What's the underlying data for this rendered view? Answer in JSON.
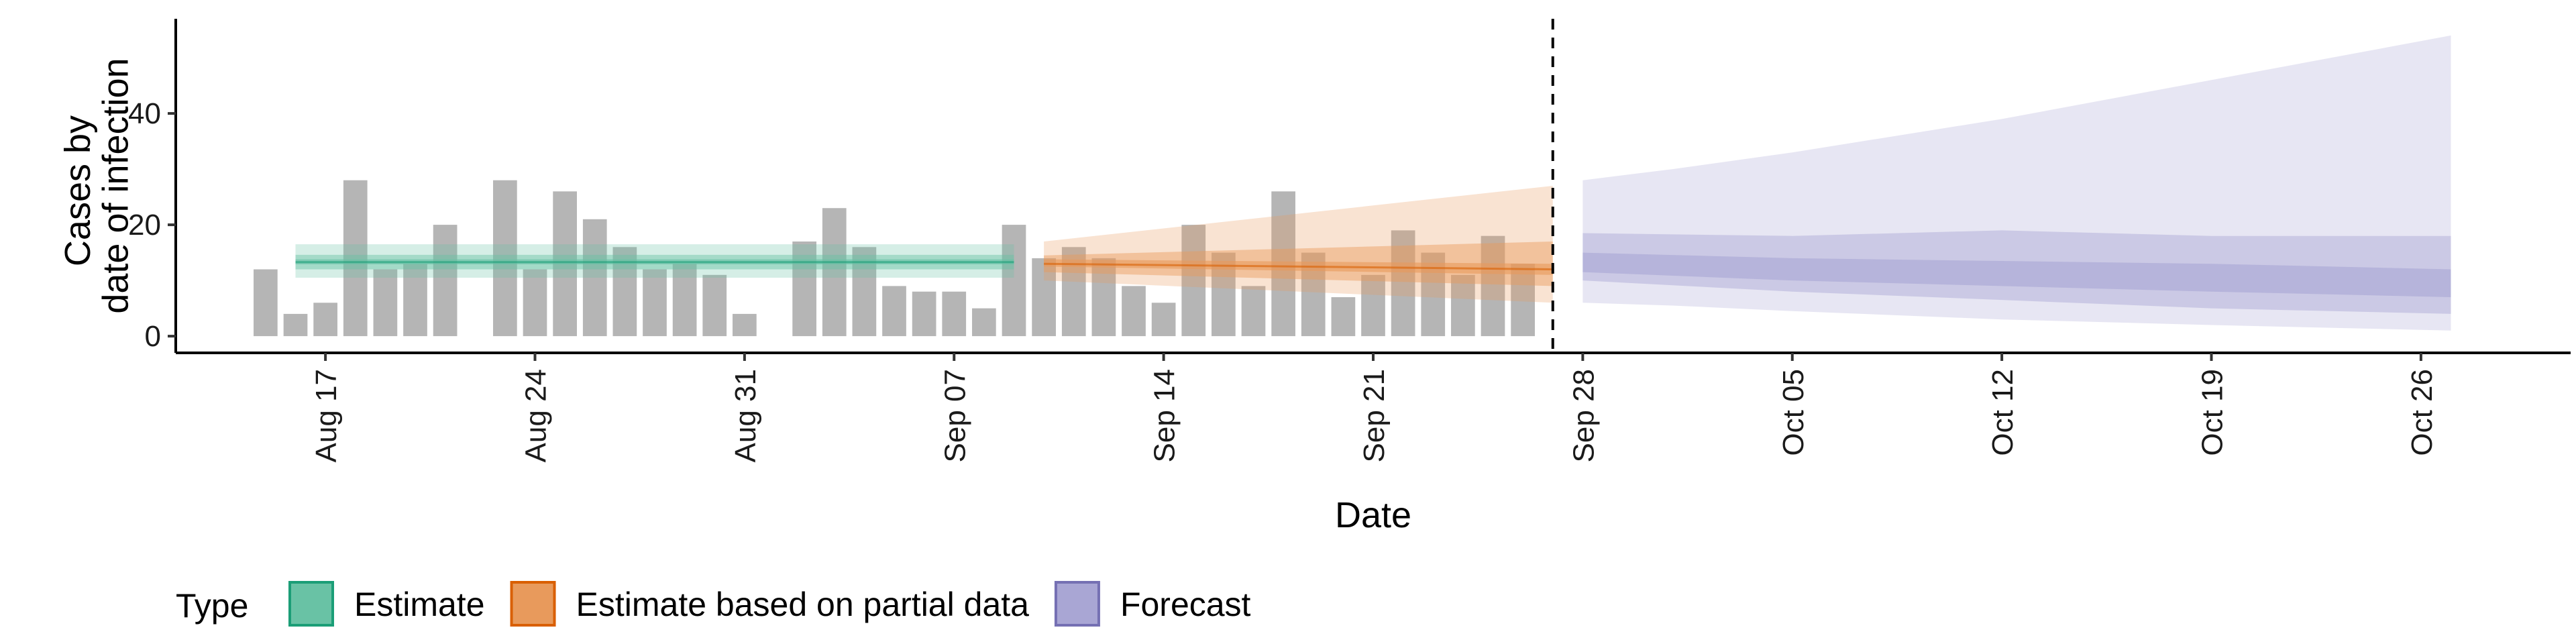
{
  "chart_data": {
    "type": "bar",
    "title": "",
    "xlabel": "Date",
    "ylabel": [
      "Cases by",
      "date of infection"
    ],
    "ylim": [
      -3,
      57
    ],
    "y_ticks": [
      0,
      20,
      40
    ],
    "x_ticks": [
      "Aug 17",
      "Aug 24",
      "Aug 31",
      "Sep 07",
      "Sep 14",
      "Sep 21",
      "Sep 28",
      "Oct 05",
      "Oct 12",
      "Oct 19",
      "Oct 26"
    ],
    "x_tick_dates": [
      "2020-08-17",
      "2020-08-24",
      "2020-08-31",
      "2020-09-07",
      "2020-09-14",
      "2020-09-21",
      "2020-09-28",
      "2020-10-05",
      "2020-10-12",
      "2020-10-19",
      "2020-10-26"
    ],
    "x_range": [
      "2020-08-12",
      "2020-10-31"
    ],
    "cutoff_date": "2020-09-27",
    "bar_color": "#b5b5b5",
    "bars": {
      "start_date": "2020-08-15",
      "values": [
        12,
        4,
        6,
        28,
        12,
        13,
        20,
        0,
        28,
        12,
        26,
        21,
        16,
        12,
        13,
        11,
        4,
        0,
        17,
        23,
        16,
        9,
        8,
        8,
        5,
        20,
        14,
        16,
        14,
        9,
        6,
        20,
        15,
        9,
        26,
        15,
        7,
        11,
        19,
        15,
        11,
        18,
        13
      ]
    },
    "series": [
      {
        "name": "Estimate",
        "color": "#1b9e77",
        "fill": "#69c2a5",
        "x_start": "2020-08-16",
        "x_end": "2020-09-09",
        "median": 13.3,
        "bands": [
          {
            "low": 10.5,
            "high": 16.5
          },
          {
            "low": 12.0,
            "high": 14.6
          },
          {
            "low": 12.9,
            "high": 13.8
          }
        ]
      },
      {
        "name": "Estimate based on partial data",
        "color": "#d95f02",
        "fill": "#e89a5c",
        "x_start": "2020-09-10",
        "x_end": "2020-09-27",
        "median_start": 13.0,
        "median_end": 12.0,
        "bands": [
          {
            "low_start": 10.0,
            "low_end": 6.0,
            "high_start": 17.0,
            "high_end": 27.0
          },
          {
            "low_start": 11.5,
            "low_end": 9.0,
            "high_start": 14.5,
            "high_end": 17.0
          },
          {
            "low_start": 12.5,
            "low_end": 11.0,
            "high_start": 13.8,
            "high_end": 13.0
          }
        ]
      },
      {
        "name": "Forecast",
        "color": "#7570b3",
        "fill": "#a9a6d4",
        "x_start": "2020-09-28",
        "x_end": "2020-10-27",
        "bands": [
          {
            "points": [
              [
                "2020-09-28",
                6,
                28
              ],
              [
                "2020-10-01",
                5.5,
                30
              ],
              [
                "2020-10-05",
                4.5,
                33
              ],
              [
                "2020-10-12",
                3,
                39
              ],
              [
                "2020-10-19",
                2,
                46
              ],
              [
                "2020-10-27",
                1,
                54
              ]
            ]
          },
          {
            "points": [
              [
                "2020-09-28",
                10,
                18.5
              ],
              [
                "2020-10-05",
                8,
                18
              ],
              [
                "2020-10-12",
                6.5,
                19
              ],
              [
                "2020-10-19",
                5,
                18
              ],
              [
                "2020-10-27",
                4,
                18
              ]
            ]
          },
          {
            "points": [
              [
                "2020-09-28",
                11.5,
                15
              ],
              [
                "2020-10-05",
                10,
                14
              ],
              [
                "2020-10-12",
                9,
                13.5
              ],
              [
                "2020-10-19",
                8,
                13
              ],
              [
                "2020-10-27",
                7,
                12
              ]
            ]
          }
        ]
      }
    ],
    "legend": {
      "title": "Type",
      "position": "bottom",
      "entries": [
        "Estimate",
        "Estimate based on partial data",
        "Forecast"
      ]
    }
  }
}
